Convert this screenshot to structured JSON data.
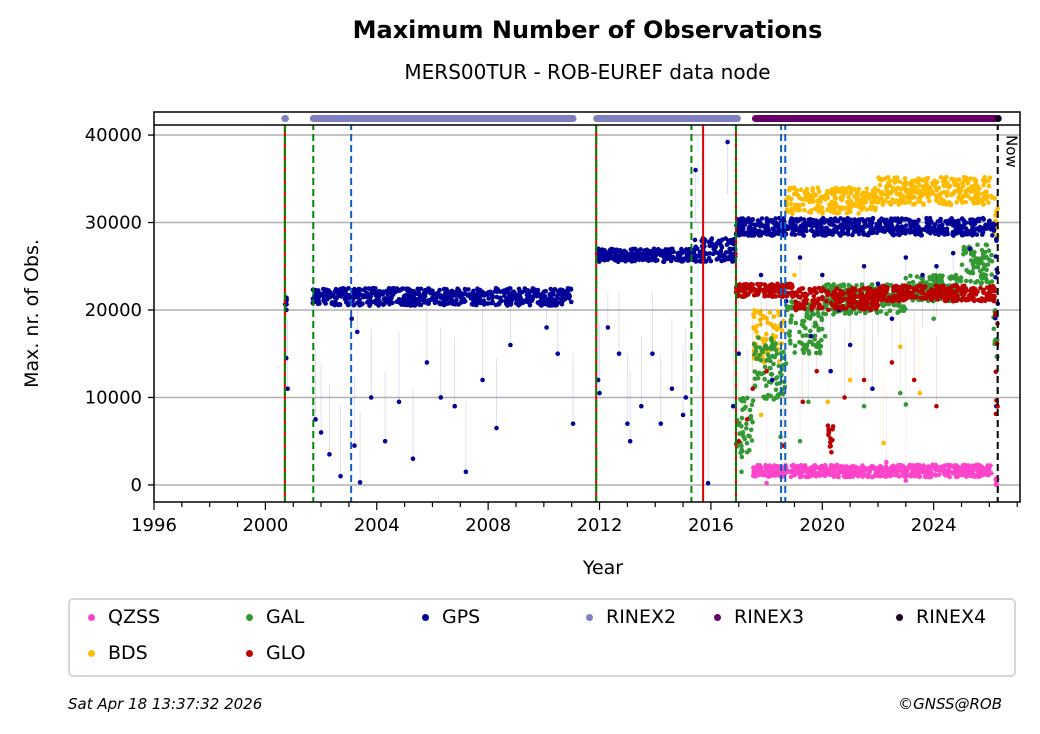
{
  "chart_data": {
    "type": "scatter",
    "title": "Maximum Number of Observations",
    "subtitle": "MERS00TUR - ROB-EUREF data node",
    "xlabel": "Year",
    "ylabel": "Max. nr. of Obs.",
    "xlim": [
      1996,
      2027.1
    ],
    "ylim": [
      -1950,
      41150
    ],
    "xticks": [
      1996,
      2000,
      2004,
      2008,
      2012,
      2016,
      2020,
      2024
    ],
    "yticks": [
      0,
      10000,
      20000,
      30000,
      40000
    ],
    "grid": "horizontal",
    "now_label": "Now",
    "now_year": 2026.3,
    "event_lines": [
      {
        "year": 2000.7,
        "style": "red-green"
      },
      {
        "year": 2001.72,
        "style": "green-dashed"
      },
      {
        "year": 2003.08,
        "style": "blue-dashed"
      },
      {
        "year": 2011.88,
        "style": "red-green"
      },
      {
        "year": 2015.3,
        "style": "green-dashed"
      },
      {
        "year": 2015.72,
        "style": "red-solid"
      },
      {
        "year": 2016.9,
        "style": "red-green"
      },
      {
        "year": 2018.52,
        "style": "blue-dashed"
      },
      {
        "year": 2018.67,
        "style": "blue-dashed"
      }
    ],
    "rinex_strip": [
      {
        "name": "RINEX2",
        "ranges": [
          [
            2000.7,
            2000.72
          ],
          [
            2001.72,
            2011.05
          ],
          [
            2011.9,
            2016.95
          ]
        ]
      },
      {
        "name": "RINEX3",
        "ranges": [
          [
            2017.6,
            2026.2
          ]
        ]
      },
      {
        "name": "RINEX4",
        "ranges": [
          [
            2026.3,
            2026.32
          ]
        ]
      }
    ],
    "series": [
      {
        "name": "QZSS",
        "color": "#ff44cc",
        "bands": [
          [
            2017.5,
            2026.1,
            900,
            2300
          ],
          [
            2026.2,
            2026.3,
            0,
            800
          ]
        ],
        "points": [
          [
            2022.3,
            2600
          ],
          [
            2018.0,
            200
          ],
          [
            2023.0,
            500
          ]
        ]
      },
      {
        "name": "BDS",
        "color": "#ffbb00",
        "bands": [
          [
            2017.5,
            2018.6,
            14000,
            20000
          ],
          [
            2018.7,
            2022.0,
            31000,
            34000
          ],
          [
            2022.0,
            2026.1,
            32000,
            35200
          ],
          [
            2026.15,
            2026.3,
            28000,
            33000
          ]
        ],
        "points": [
          [
            2019.0,
            24000
          ],
          [
            2019.6,
            21000
          ],
          [
            2020.2,
            9500
          ],
          [
            2021.0,
            12000
          ],
          [
            2022.2,
            4800
          ],
          [
            2022.8,
            15800
          ],
          [
            2023.5,
            10500
          ],
          [
            2017.8,
            8000
          ]
        ]
      },
      {
        "name": "GAL",
        "color": "#339933",
        "bands": [
          [
            2016.9,
            2017.5,
            3000,
            10000
          ],
          [
            2017.5,
            2018.7,
            9500,
            17000
          ],
          [
            2018.7,
            2020.0,
            15000,
            21000
          ],
          [
            2020.0,
            2023.0,
            19500,
            23000
          ],
          [
            2023.0,
            2025.0,
            21000,
            24000
          ],
          [
            2025.0,
            2026.1,
            23000,
            27500
          ],
          [
            2026.15,
            2026.3,
            14000,
            20000
          ]
        ],
        "points": [
          [
            2017.1,
            1500
          ],
          [
            2018.5,
            5500
          ],
          [
            2019.5,
            9500
          ],
          [
            2020.1,
            17000
          ],
          [
            2021.5,
            9000
          ],
          [
            2022.8,
            10500
          ],
          [
            2023.0,
            9200
          ],
          [
            2024.0,
            19000
          ],
          [
            2019.2,
            5000
          ]
        ]
      },
      {
        "name": "GPS",
        "color": "#000099",
        "bands": [
          [
            2000.7,
            2000.78,
            20000,
            21500
          ],
          [
            2001.7,
            2011.0,
            20500,
            22500
          ],
          [
            2011.9,
            2015.3,
            25500,
            27000
          ],
          [
            2015.3,
            2016.9,
            25500,
            28200
          ],
          [
            2016.9,
            2026.2,
            28500,
            30500
          ],
          [
            2026.2,
            2026.32,
            18000,
            29000
          ]
        ],
        "points": [
          [
            2000.75,
            14500
          ],
          [
            2000.8,
            11000
          ],
          [
            2001.8,
            7500
          ],
          [
            2002.0,
            6000
          ],
          [
            2002.3,
            3500
          ],
          [
            2002.7,
            1000
          ],
          [
            2003.1,
            19000
          ],
          [
            2003.2,
            4500
          ],
          [
            2003.3,
            17500
          ],
          [
            2003.4,
            300
          ],
          [
            2003.8,
            10000
          ],
          [
            2004.3,
            5000
          ],
          [
            2004.8,
            9500
          ],
          [
            2005.3,
            3000
          ],
          [
            2005.8,
            14000
          ],
          [
            2006.3,
            10000
          ],
          [
            2006.8,
            9000
          ],
          [
            2007.2,
            1500
          ],
          [
            2007.8,
            12000
          ],
          [
            2008.3,
            6500
          ],
          [
            2008.8,
            16000
          ],
          [
            2010.1,
            18000
          ],
          [
            2010.5,
            15000
          ],
          [
            2011.05,
            7000
          ],
          [
            2011.95,
            12000
          ],
          [
            2012.0,
            10500
          ],
          [
            2012.3,
            18000
          ],
          [
            2012.7,
            15000
          ],
          [
            2013.0,
            7000
          ],
          [
            2013.1,
            5000
          ],
          [
            2013.5,
            9000
          ],
          [
            2013.9,
            15000
          ],
          [
            2014.2,
            7000
          ],
          [
            2014.6,
            11000
          ],
          [
            2015.0,
            8000
          ],
          [
            2015.1,
            10000
          ],
          [
            2015.45,
            36000
          ],
          [
            2015.9,
            200
          ],
          [
            2016.6,
            39200
          ],
          [
            2016.8,
            9000
          ],
          [
            2017.0,
            15000
          ],
          [
            2017.8,
            24000
          ],
          [
            2018.7,
            21000
          ],
          [
            2019.2,
            26000
          ],
          [
            2019.6,
            17000
          ],
          [
            2020.0,
            24000
          ],
          [
            2020.6,
            20000
          ],
          [
            2021.0,
            16000
          ],
          [
            2021.5,
            25000
          ],
          [
            2022.0,
            23000
          ],
          [
            2022.5,
            19000
          ],
          [
            2023.0,
            26000
          ],
          [
            2023.6,
            24000
          ],
          [
            2024.1,
            25000
          ],
          [
            2024.7,
            26500
          ],
          [
            2025.3,
            27000
          ],
          [
            2026.25,
            9000
          ],
          [
            2018.2,
            12000
          ],
          [
            2020.3,
            13000
          ],
          [
            2021.8,
            11000
          ]
        ]
      },
      {
        "name": "GLO",
        "color": "#bb0000",
        "bands": [
          [
            2016.9,
            2019.0,
            21500,
            23000
          ],
          [
            2019.0,
            2022.0,
            20000,
            22500
          ],
          [
            2022.0,
            2026.2,
            21000,
            22800
          ],
          [
            2020.2,
            2020.4,
            3500,
            8000
          ],
          [
            2026.2,
            2026.32,
            6000,
            20000
          ]
        ],
        "points": [
          [
            2017.0,
            5000
          ],
          [
            2017.5,
            11000
          ],
          [
            2018.0,
            13000
          ],
          [
            2018.6,
            4500
          ],
          [
            2019.3,
            9500
          ],
          [
            2019.8,
            13000
          ],
          [
            2020.8,
            10000
          ],
          [
            2021.5,
            12000
          ],
          [
            2022.5,
            14000
          ],
          [
            2023.3,
            12000
          ],
          [
            2024.1,
            9000
          ],
          [
            2017.3,
            7500
          ]
        ]
      }
    ],
    "legend": {
      "placement": "below",
      "entries": [
        {
          "label": "QZSS",
          "color": "#ff44cc"
        },
        {
          "label": "GAL",
          "color": "#339933"
        },
        {
          "label": "GPS",
          "color": "#000099"
        },
        {
          "label": "RINEX2",
          "color": "#8080c0"
        },
        {
          "label": "RINEX3",
          "color": "#660066"
        },
        {
          "label": "RINEX4",
          "color": "#1a0020"
        },
        {
          "label": "BDS",
          "color": "#ffbb00"
        },
        {
          "label": "GLO",
          "color": "#bb0000"
        }
      ]
    }
  },
  "footer": {
    "timestamp": "Sat Apr 18 13:37:32 2026",
    "copyright": "©GNSS@ROB"
  }
}
